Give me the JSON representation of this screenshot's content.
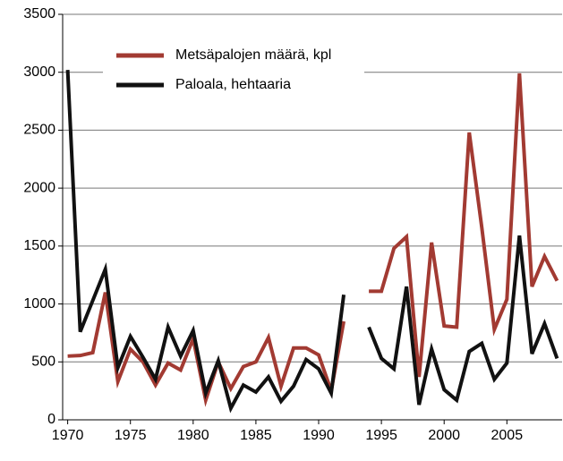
{
  "chart_data": {
    "type": "line",
    "x": [
      1970,
      1971,
      1972,
      1973,
      1974,
      1975,
      1976,
      1977,
      1978,
      1979,
      1980,
      1981,
      1982,
      1983,
      1984,
      1985,
      1986,
      1987,
      1988,
      1989,
      1990,
      1991,
      1992,
      1993,
      1994,
      1995,
      1996,
      1997,
      1998,
      1999,
      2000,
      2001,
      2002,
      2003,
      2004,
      2005,
      2006,
      2007,
      2008,
      2009
    ],
    "series": [
      {
        "name": "Metsäpalojen määrä, kpl",
        "color": "#a23a32",
        "values": [
          550,
          555,
          580,
          1100,
          330,
          610,
          500,
          300,
          490,
          430,
          700,
          170,
          500,
          270,
          460,
          500,
          710,
          290,
          620,
          620,
          560,
          250,
          850,
          null,
          1110,
          1110,
          1480,
          1580,
          370,
          1530,
          810,
          800,
          2480,
          1660,
          780,
          1040,
          2990,
          1150,
          1410,
          1200
        ]
      },
      {
        "name": "Paloala, hehtaaria",
        "color": "#111111",
        "values": [
          3020,
          760,
          1030,
          1300,
          450,
          720,
          540,
          350,
          800,
          550,
          770,
          230,
          510,
          100,
          300,
          240,
          370,
          160,
          290,
          520,
          440,
          230,
          1080,
          null,
          800,
          530,
          440,
          1150,
          130,
          610,
          260,
          170,
          590,
          660,
          350,
          490,
          1590,
          570,
          830,
          530
        ]
      }
    ],
    "xlim": [
      1969.6,
      2009.4
    ],
    "xticks": [
      1970,
      1975,
      1980,
      1985,
      1990,
      1995,
      2000,
      2005
    ],
    "ylim": [
      0,
      3500
    ],
    "yticks": [
      0,
      500,
      1000,
      1500,
      2000,
      2500,
      3000,
      3500
    ],
    "grid": true,
    "legend": "top-left"
  }
}
